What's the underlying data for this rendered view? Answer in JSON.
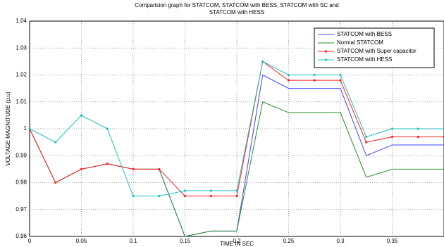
{
  "chart_data": {
    "type": "line",
    "title": [
      "Comparision graph for STATCOM, STATCOM with BESS, STATCOM with SC and",
      "STATCOM with HESS"
    ],
    "x_label": "TIME IN SEC",
    "y_label": "VOLTAGE MAGNITUDE (p.u)",
    "x": [
      0,
      0.025,
      0.05,
      0.075,
      0.1,
      0.125,
      0.15,
      0.175,
      0.2,
      0.225,
      0.25,
      0.275,
      0.3,
      0.325,
      0.35,
      0.375,
      0.4
    ],
    "series": [
      {
        "name": "STATCOM with BESS",
        "color": "#4040ff",
        "marker": false,
        "values": [
          1,
          0.98,
          0.985,
          0.987,
          0.985,
          0.985,
          0.96,
          0.962,
          0.962,
          1.02,
          1.015,
          1.015,
          1.015,
          0.99,
          0.994,
          0.994,
          0.994
        ]
      },
      {
        "name": "Normal STATCOM",
        "color": "#2e8b2e",
        "marker": false,
        "values": [
          1,
          0.98,
          0.985,
          0.987,
          0.985,
          0.985,
          0.96,
          0.962,
          0.962,
          1.01,
          1.006,
          1.006,
          1.006,
          0.982,
          0.985,
          0.985,
          0.985
        ]
      },
      {
        "name": "STATCOM with Super capacitor",
        "color": "#ff2020",
        "marker": true,
        "values": [
          1,
          0.98,
          0.985,
          0.987,
          0.985,
          0.985,
          0.975,
          0.975,
          0.975,
          1.025,
          1.018,
          1.018,
          1.018,
          0.995,
          0.997,
          0.997,
          0.997
        ]
      },
      {
        "name": "STATCOM with HESS",
        "color": "#20c0c0",
        "marker": true,
        "values": [
          1,
          0.995,
          1.005,
          1.0,
          0.975,
          0.975,
          0.977,
          0.977,
          0.977,
          1.025,
          1.02,
          1.02,
          1.02,
          0.997,
          1.0,
          1.0,
          1.0
        ]
      }
    ],
    "xlim": [
      0,
      0.4
    ],
    "xticks": [
      0,
      0.05,
      0.1,
      0.15,
      0.2,
      0.25,
      0.3,
      0.35
    ],
    "ylim": [
      0.96,
      1.04
    ],
    "yticks": [
      0.96,
      0.97,
      0.98,
      0.99,
      1,
      1.01,
      1.02,
      1.03,
      1.04
    ],
    "grid": true,
    "legend": "upper right"
  }
}
